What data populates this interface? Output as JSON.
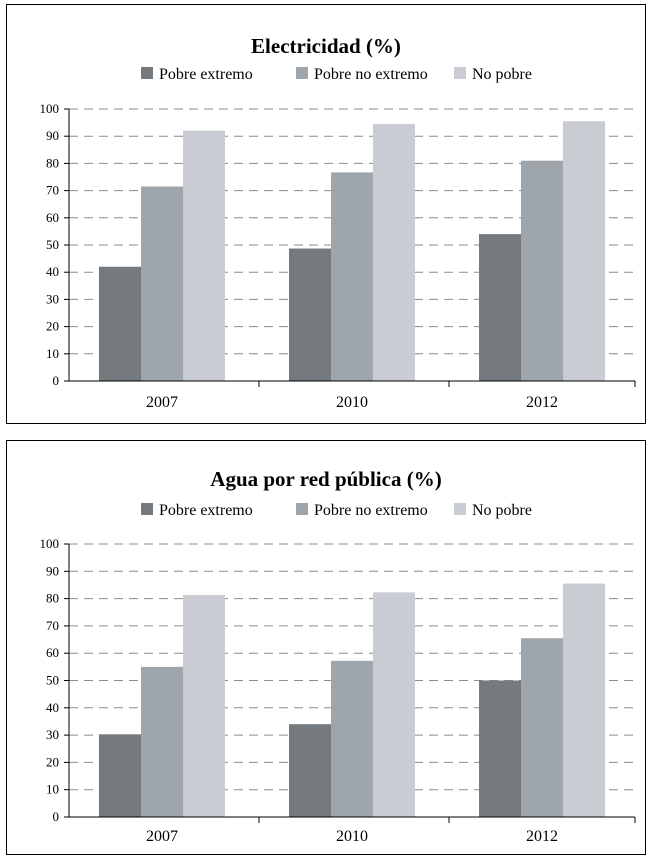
{
  "chart_data": [
    {
      "type": "bar",
      "title": "Electricidad (%)",
      "categories": [
        "2007",
        "2010",
        "2012"
      ],
      "series": [
        {
          "name": "Pobre extremo",
          "color": "#747a7d",
          "values": [
            42,
            48.7,
            54
          ]
        },
        {
          "name": "Pobre no extremo",
          "color": "#9fa6ab",
          "values": [
            71.5,
            76.7,
            81
          ]
        },
        {
          "name": "No pobre",
          "color": "#c9ccd2",
          "values": [
            92,
            94.5,
            95.5
          ]
        }
      ],
      "yticks": [
        "0",
        "10",
        "20",
        "30",
        "40",
        "50",
        "60",
        "70",
        "80",
        "90",
        "100"
      ],
      "ylim": [
        0,
        100
      ],
      "grid": "dashed horizontal",
      "legend": "top"
    },
    {
      "type": "bar",
      "title": "Agua por red pública (%)",
      "categories": [
        "2007",
        "2010",
        "2012"
      ],
      "series": [
        {
          "name": "Pobre extremo",
          "color": "#747a7d",
          "values": [
            30.3,
            34,
            50
          ]
        },
        {
          "name": "Pobre no extremo",
          "color": "#9fa6ab",
          "values": [
            55,
            57.2,
            65.5
          ]
        },
        {
          "name": "No pobre",
          "color": "#c9ccd2",
          "values": [
            81.3,
            82.3,
            85.5
          ]
        }
      ],
      "yticks": [
        "0",
        "10",
        "20",
        "30",
        "40",
        "50",
        "60",
        "70",
        "80",
        "90",
        "100"
      ],
      "ylim": [
        0,
        100
      ],
      "grid": "dashed horizontal",
      "legend": "top"
    }
  ]
}
